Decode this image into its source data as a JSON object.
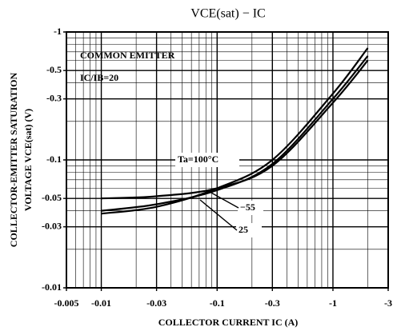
{
  "chart_data": {
    "type": "line",
    "title": "VCE(sat) − IC",
    "x_label": "COLLECTOR CURRENT  IC  (A)",
    "y_label": [
      "COLLECTOR-EMITTER SATURATION",
      "VOLTAGE  VCE(sat)  (V)"
    ],
    "annotations": [
      "COMMON EMITTER",
      "IC/IB=20"
    ],
    "x": [
      -0.01,
      -0.03,
      -0.1,
      -0.3,
      -1,
      -2
    ],
    "series": [
      {
        "name": "Ta=100°C",
        "color": "#000000",
        "values": [
          -0.038,
          -0.043,
          -0.06,
          -0.1,
          -0.33,
          -0.75
        ]
      },
      {
        "name": "−55",
        "color": "#000000",
        "values": [
          -0.05,
          -0.052,
          -0.06,
          -0.09,
          -0.28,
          -0.6
        ]
      },
      {
        "name": "25",
        "color": "#000000",
        "values": [
          -0.04,
          -0.045,
          -0.058,
          -0.093,
          -0.3,
          -0.65
        ]
      }
    ],
    "xlim": [
      -0.005,
      -3
    ],
    "ylim": [
      -0.01,
      -1
    ],
    "xticks": [
      -0.005,
      -0.01,
      -0.03,
      -0.1,
      -0.3,
      -1,
      -3
    ],
    "yticks": [
      -0.01,
      -0.03,
      -0.05,
      -0.1,
      -0.3,
      -0.5,
      -1
    ],
    "log_x": true,
    "log_y": true,
    "grid": true
  }
}
